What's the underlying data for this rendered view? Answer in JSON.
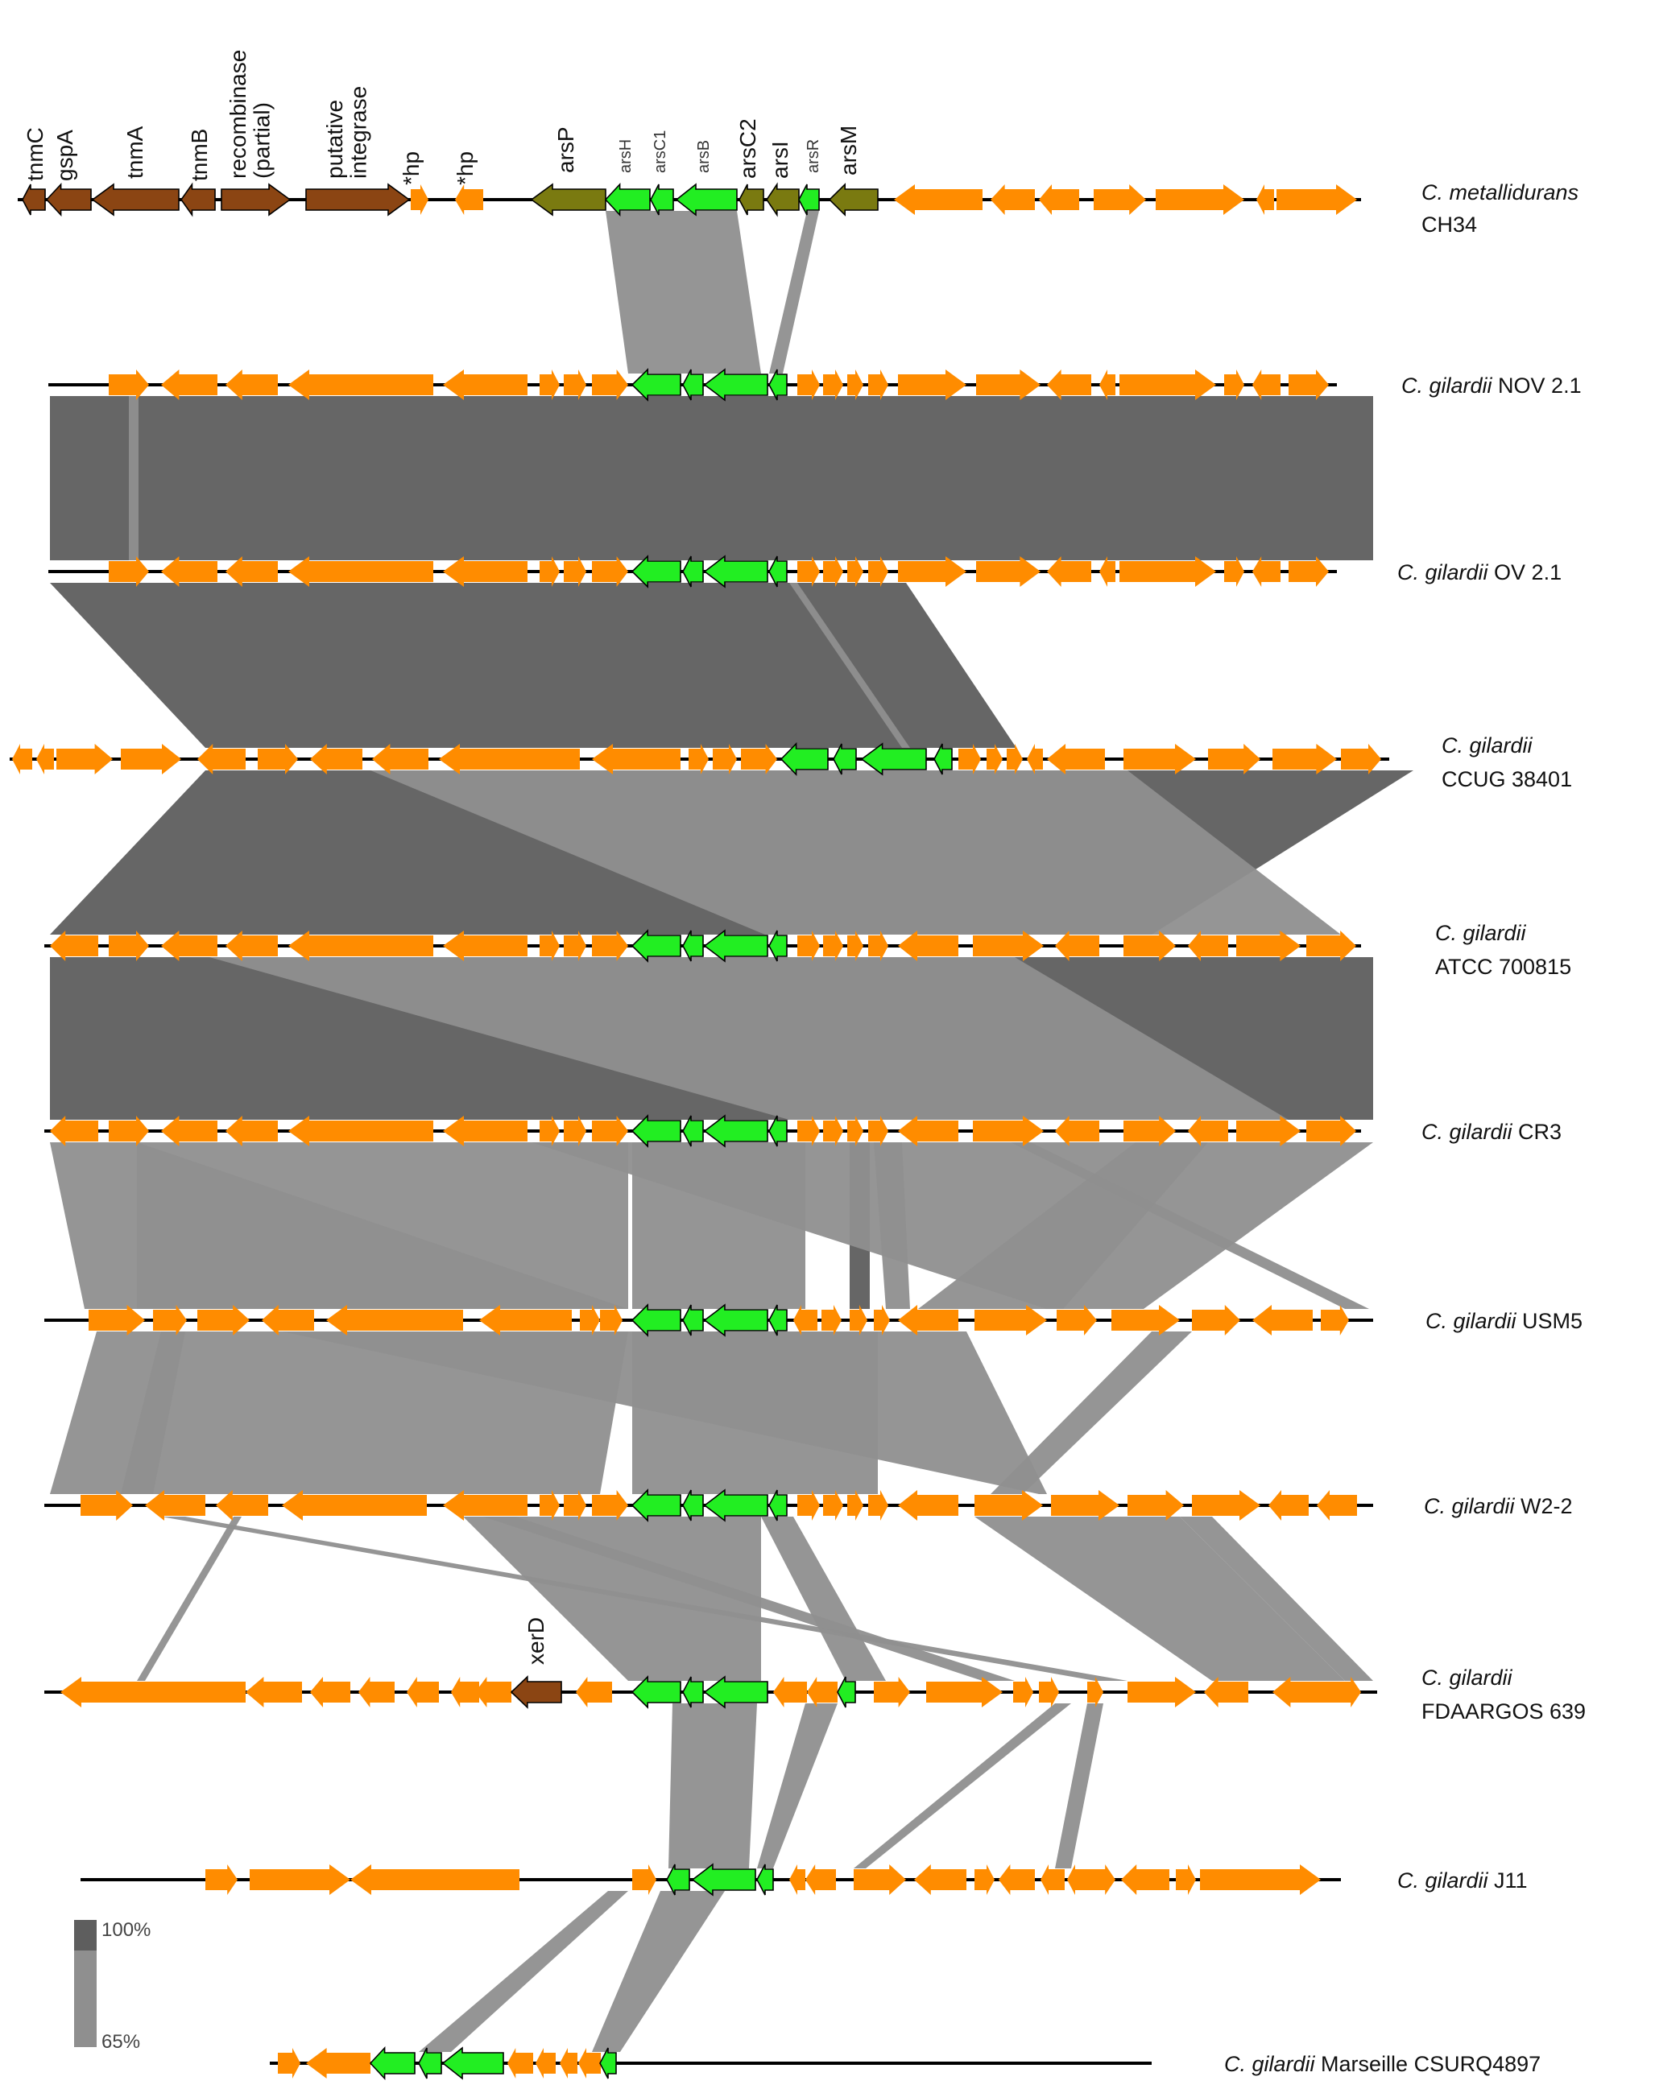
{
  "colors": {
    "other": "#ff8c00",
    "ars": "#22ee22",
    "mobile": "#8b4513",
    "regulator": "#7a7a10",
    "identity_high": "#5e5e5e",
    "identity_low": "#8f8f8f"
  },
  "legend": {
    "high": "100%",
    "low": "65%"
  },
  "genomes": [
    {
      "id": "ch34",
      "species": "C. metallidurans",
      "strain": "CH34",
      "label_lines": 2
    },
    {
      "id": "nov21",
      "species": "C. gilardii",
      "strain": "NOV 2.1",
      "label_lines": 1
    },
    {
      "id": "ov21",
      "species": "C. gilardii",
      "strain": "OV 2.1",
      "label_lines": 1
    },
    {
      "id": "ccug",
      "species": "C. gilardii",
      "strain": "CCUG 38401",
      "label_lines": 2
    },
    {
      "id": "atcc",
      "species": "C. gilardii",
      "strain": "ATCC 700815",
      "label_lines": 2
    },
    {
      "id": "cr3",
      "species": "C. gilardii",
      "strain": "CR3",
      "label_lines": 1
    },
    {
      "id": "usm5",
      "species": "C. gilardii",
      "strain": "USM5",
      "label_lines": 1
    },
    {
      "id": "w22",
      "species": "C. gilardii",
      "strain": "W2-2",
      "label_lines": 1
    },
    {
      "id": "fda",
      "species": "C. gilardii",
      "strain": "FDAARGOS 639",
      "label_lines": 2
    },
    {
      "id": "j11",
      "species": "C. gilardii",
      "strain": "J11",
      "label_lines": 1
    },
    {
      "id": "mars",
      "species": "C. gilardii",
      "strain": "Marseille CSURQ4897",
      "label_lines": 1
    }
  ],
  "gene_labels": [
    {
      "id": "tnmC",
      "text": "tnmC"
    },
    {
      "id": "gspA",
      "text": "gspA"
    },
    {
      "id": "tnmA",
      "text": "tnmA"
    },
    {
      "id": "tnmB",
      "text": "tnmB"
    },
    {
      "id": "recombinase",
      "text": "recombinase\n(partial)"
    },
    {
      "id": "integrase",
      "text": "putative\nintegrase"
    },
    {
      "id": "hp1",
      "text": "*hp"
    },
    {
      "id": "hp2",
      "text": "*hp"
    },
    {
      "id": "arsP",
      "text": "arsP"
    },
    {
      "id": "arsH",
      "text": "arsH"
    },
    {
      "id": "arsC1",
      "text": "arsC1"
    },
    {
      "id": "arsB",
      "text": "arsB"
    },
    {
      "id": "arsC2",
      "text": "arsC2"
    },
    {
      "id": "arsI",
      "text": "arsI"
    },
    {
      "id": "arsR",
      "text": "arsR"
    },
    {
      "id": "arsM",
      "text": "arsM"
    },
    {
      "id": "xerD",
      "text": "xerD"
    }
  ]
}
